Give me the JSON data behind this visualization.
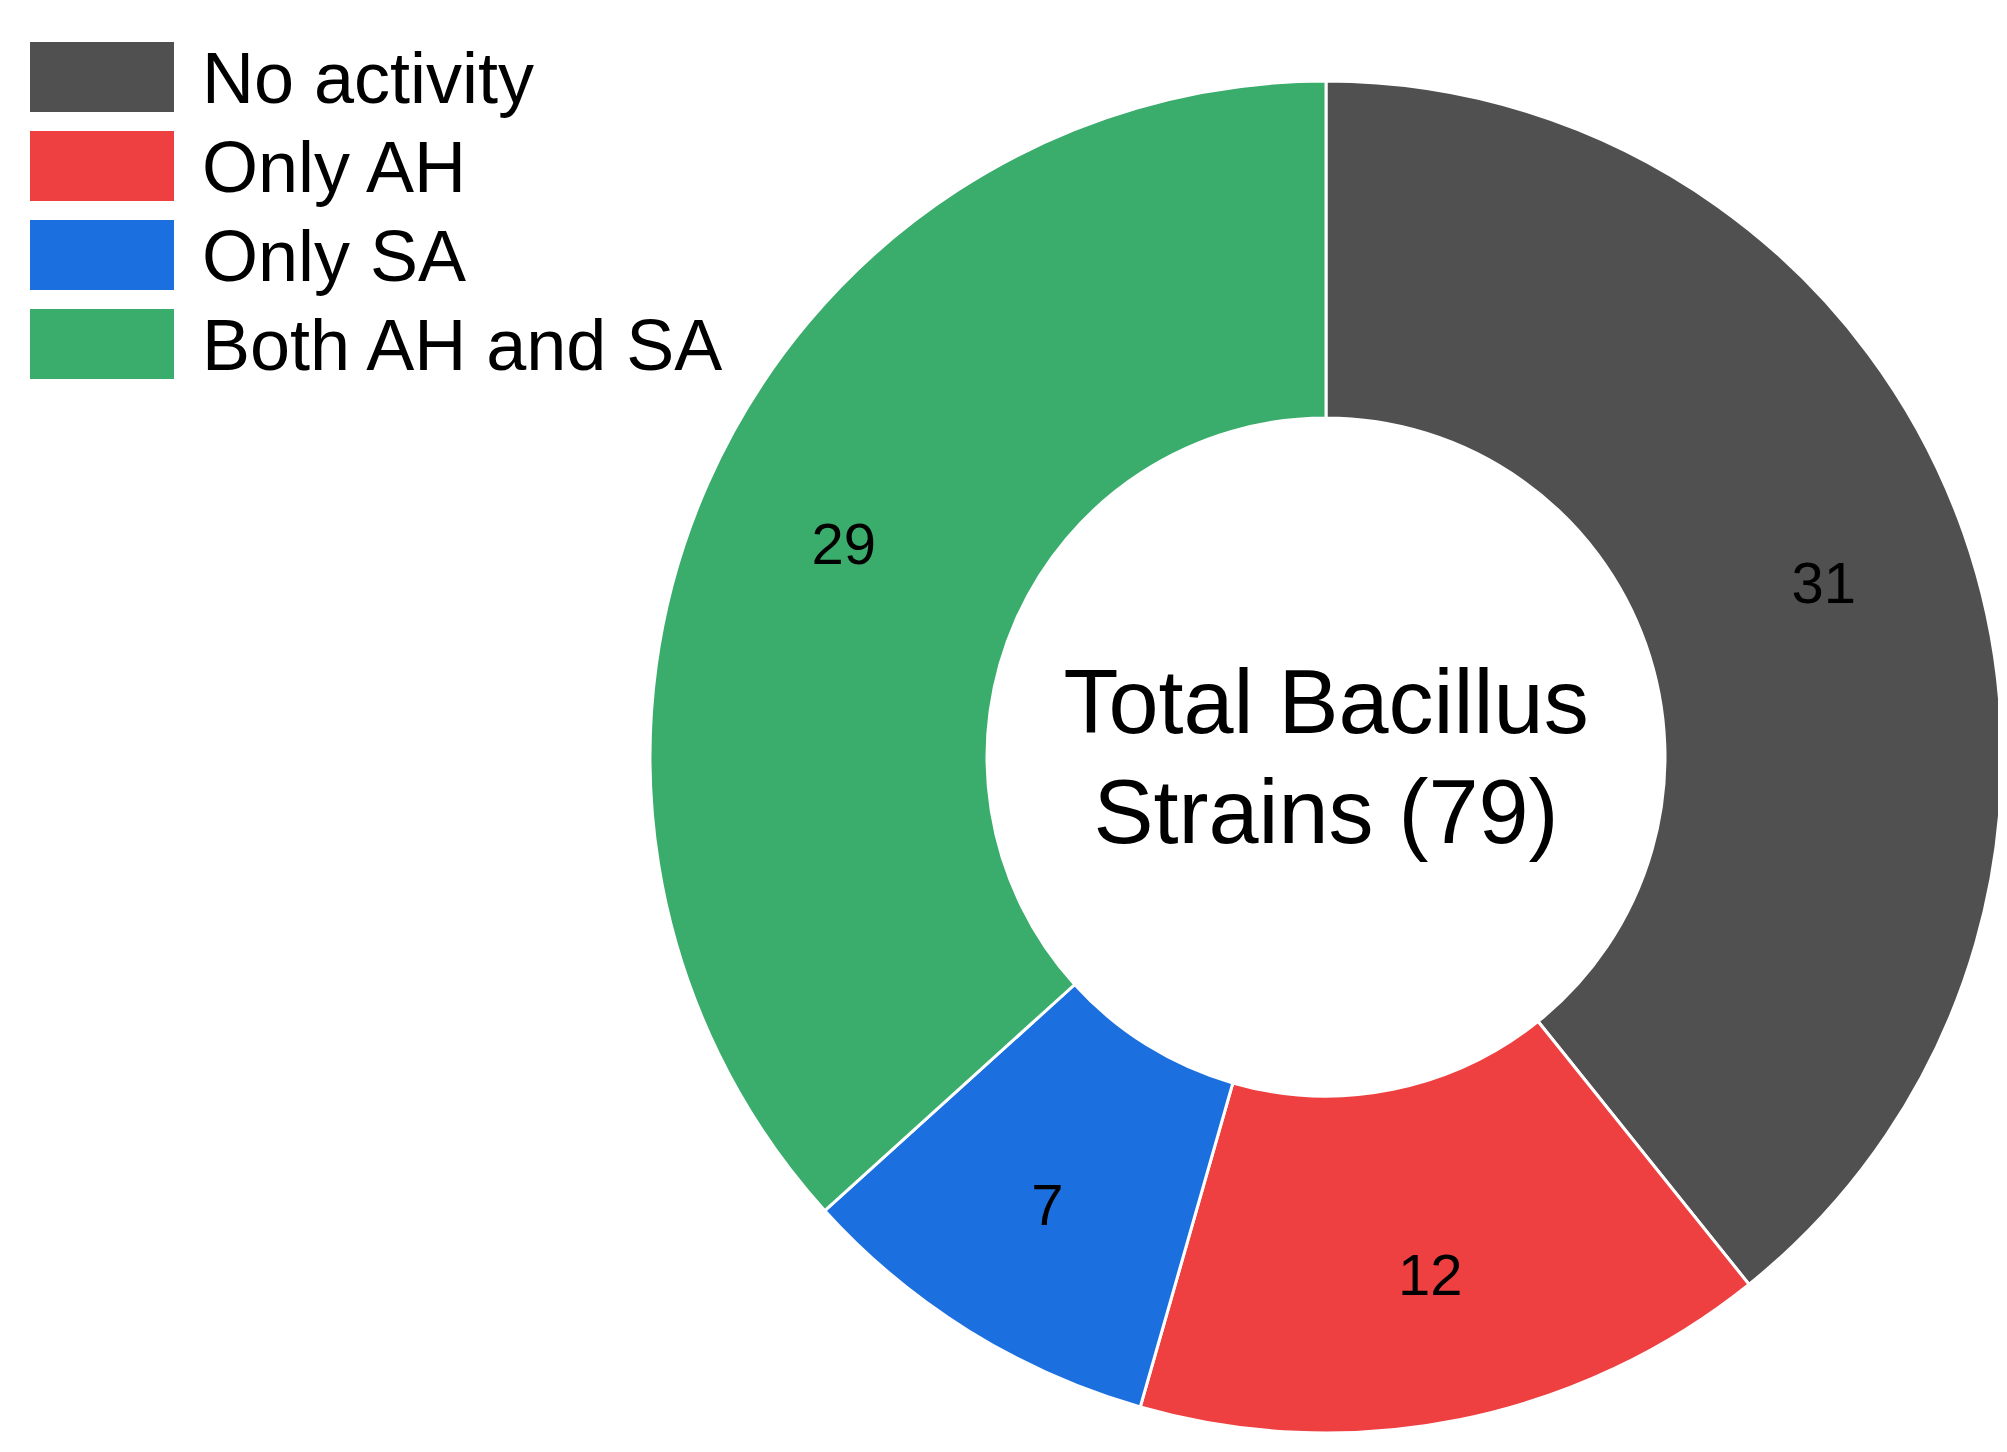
{
  "chart_data": {
    "type": "donut",
    "title": "Total Bacillus Strains (79)",
    "categories": [
      "No activity",
      "Only AH",
      "Only SA",
      "Both AH and SA"
    ],
    "values": [
      31,
      12,
      7,
      29
    ],
    "colors": [
      "#505050",
      "#ee4040",
      "#1b6fde",
      "#3aad6c"
    ],
    "data_labels": true,
    "legend": "top left"
  }
}
